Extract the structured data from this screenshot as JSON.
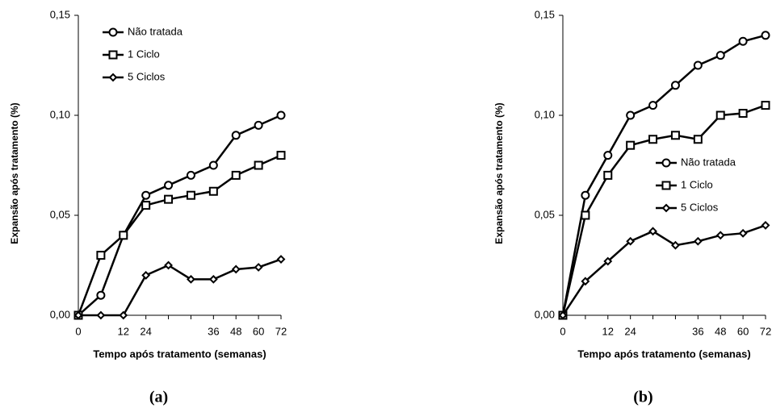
{
  "chart_data": [
    {
      "type": "line",
      "caption": "(a)",
      "xlabel": "Tempo após tratamento (semanas)",
      "ylabel": "Expansão após tratamento (%)",
      "categories": [
        "0",
        null,
        "12",
        "24",
        null,
        null,
        "36",
        "48",
        "60",
        "72"
      ],
      "ylim": [
        0,
        0.15
      ],
      "yticks": [
        {
          "value": 0,
          "label": "0,00"
        },
        {
          "value": 0.05,
          "label": "0,05"
        },
        {
          "value": 0.1,
          "label": "0,10"
        },
        {
          "value": 0.15,
          "label": "0,15"
        }
      ],
      "legend": "upper left",
      "series": [
        {
          "name": "Não tratada",
          "color": "#000000",
          "marker": "circle",
          "values": [
            0,
            0.01,
            0.04,
            0.06,
            0.065,
            0.07,
            0.075,
            0.09,
            0.095,
            0.1
          ]
        },
        {
          "name": "1 Ciclo",
          "color": "#000000",
          "marker": "square",
          "values": [
            0,
            0.03,
            0.04,
            0.055,
            0.058,
            0.06,
            0.062,
            0.07,
            0.075,
            0.08
          ]
        },
        {
          "name": "5 Ciclos",
          "color": "#000000",
          "marker": "diamond",
          "values": [
            0,
            0,
            0,
            0.02,
            0.025,
            0.018,
            0.018,
            0.023,
            0.024,
            0.028
          ]
        }
      ]
    },
    {
      "type": "line",
      "caption": "(b)",
      "xlabel": "Tempo após tratamento (semanas)",
      "ylabel": "Expansão após tratamento (%)",
      "categories": [
        "0",
        null,
        "12",
        "24",
        null,
        null,
        "36",
        "48",
        "60",
        "72"
      ],
      "ylim": [
        0,
        0.15
      ],
      "yticks": [
        {
          "value": 0,
          "label": "0,00"
        },
        {
          "value": 0.05,
          "label": "0,05"
        },
        {
          "value": 0.1,
          "label": "0,10"
        },
        {
          "value": 0.15,
          "label": "0,15"
        }
      ],
      "legend": "right",
      "series": [
        {
          "name": "Não tratada",
          "color": "#000000",
          "marker": "circle",
          "values": [
            0,
            0.06,
            0.08,
            0.1,
            0.105,
            0.115,
            0.125,
            0.13,
            0.137,
            0.14
          ]
        },
        {
          "name": "1 Ciclo",
          "color": "#000000",
          "marker": "square",
          "values": [
            0,
            0.05,
            0.07,
            0.085,
            0.088,
            0.09,
            0.088,
            0.1,
            0.101,
            0.105
          ]
        },
        {
          "name": "5 Ciclos",
          "color": "#000000",
          "marker": "diamond",
          "values": [
            0,
            0.017,
            0.027,
            0.037,
            0.042,
            0.035,
            0.037,
            0.04,
            0.041,
            0.045
          ]
        }
      ]
    }
  ]
}
